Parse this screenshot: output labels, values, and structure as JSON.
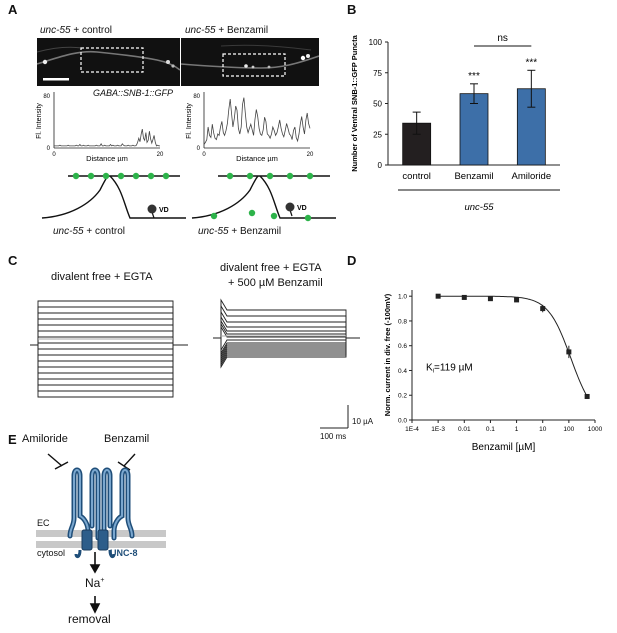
{
  "panels": {
    "A": {
      "letter": "A",
      "left_title_italic": "unc-55",
      "left_title_rest": "+ control",
      "right_title_italic": "unc-55",
      "right_title_rest": "+ Benzamil",
      "gfp_label": "GABA::SNB-1::GFP",
      "ylabel": "Fl. Intensity",
      "xlabel": "Distance µm",
      "left_x_ticks": [
        "0",
        "20"
      ],
      "left_y_ticks": [
        "80",
        "0"
      ],
      "right_x_ticks": [
        "0",
        "20"
      ],
      "right_y_ticks": [
        "80",
        "0"
      ],
      "vd_label": "VD",
      "left_caption_italic": "unc-55",
      "left_caption_rest": "+ control",
      "right_caption_italic": "unc-55",
      "right_caption_rest": "+ Benzamil",
      "left_trace": [
        3,
        3,
        3,
        3,
        3,
        4,
        3,
        3,
        3,
        3,
        3,
        3,
        4,
        3,
        3,
        3,
        3,
        3,
        3,
        4,
        3,
        3,
        5,
        3,
        3,
        4,
        3,
        3,
        3,
        4,
        3,
        3,
        3,
        3,
        3,
        3,
        4,
        3,
        3,
        3,
        6,
        3,
        3,
        4,
        3,
        3,
        3,
        3,
        5,
        3,
        4,
        3,
        3,
        3,
        4,
        3,
        3,
        3,
        6,
        4,
        3,
        3,
        3,
        4,
        3,
        3,
        3,
        4,
        3,
        3,
        4,
        8,
        14,
        9,
        20,
        27,
        14,
        11,
        22,
        8,
        11,
        24,
        13,
        7,
        12,
        18,
        8,
        3,
        4,
        3,
        3
      ],
      "right_trace": [
        5,
        8,
        12,
        30,
        18,
        15,
        34,
        22,
        14,
        12,
        20,
        18,
        30,
        38,
        22,
        18,
        25,
        35,
        55,
        70,
        50,
        30,
        42,
        60,
        54,
        28,
        20,
        30,
        62,
        72,
        50,
        30,
        22,
        28,
        34,
        26,
        18,
        40,
        55,
        45,
        28,
        20,
        18,
        26,
        44,
        38,
        20,
        18,
        14,
        20,
        30,
        25,
        18,
        22,
        30,
        40,
        28,
        20,
        16,
        25,
        35,
        28,
        20,
        18,
        12,
        25,
        30,
        15,
        10,
        20,
        35,
        45,
        30,
        20,
        40,
        50,
        35,
        28
      ]
    },
    "B": {
      "letter": "B",
      "chart_data": {
        "type": "bar",
        "categories": [
          "control",
          "Benzamil",
          "Amiloride"
        ],
        "values": [
          34,
          58,
          62
        ],
        "errors": [
          9,
          8,
          15
        ],
        "significance": [
          "",
          "***",
          "***"
        ],
        "bracket_label": "ns",
        "group_label": "unc-55",
        "ylabel": "Number of Ventral SNB-1::GFP Puncta",
        "ylim": [
          0,
          100
        ],
        "yticks": [
          "0",
          "25",
          "50",
          "75",
          "100"
        ],
        "colors": [
          "#231f20",
          "#3d6fa8",
          "#3d6fa8"
        ]
      }
    },
    "C": {
      "letter": "C",
      "left_label": "divalent free + EGTA",
      "right_label_line1": "divalent free + EGTA",
      "right_label_line2": "+ 500 µM Benzamil",
      "scale_y": "10 µA",
      "scale_x": "100 ms"
    },
    "D": {
      "letter": "D",
      "chart_data": {
        "type": "scatter",
        "x": [
          0.001,
          0.01,
          0.1,
          1,
          10,
          100,
          500
        ],
        "values": [
          1.0,
          0.99,
          0.98,
          0.97,
          0.9,
          0.55,
          0.19
        ],
        "errors": [
          0.01,
          0.01,
          0.01,
          0.01,
          0.03,
          0.05,
          0.02
        ],
        "ylabel": "Norm. current in div. free (-100mV)",
        "xlabel": "Benzamil [µM]",
        "x_ticks": [
          "1E-4",
          "1E-3",
          "0.01",
          "0.1",
          "1",
          "10",
          "100",
          "1000"
        ],
        "y_ticks": [
          "1.0",
          "0.8",
          "0.6",
          "0.4",
          "0.2",
          "0.0"
        ],
        "xscale": "log",
        "ylim": [
          0,
          1.05
        ],
        "annotation": "K",
        "annotation_sub": "i",
        "annotation_rest": "=119 µM",
        "ki": 119
      }
    },
    "E": {
      "letter": "E",
      "amiloride": "Amiloride",
      "benzamil": "Benzamil",
      "ec": "EC",
      "cytosol": "cytosol",
      "unc8": "UNC-8",
      "na_main": "Na",
      "na_sup": "+",
      "removal": "removal"
    }
  }
}
